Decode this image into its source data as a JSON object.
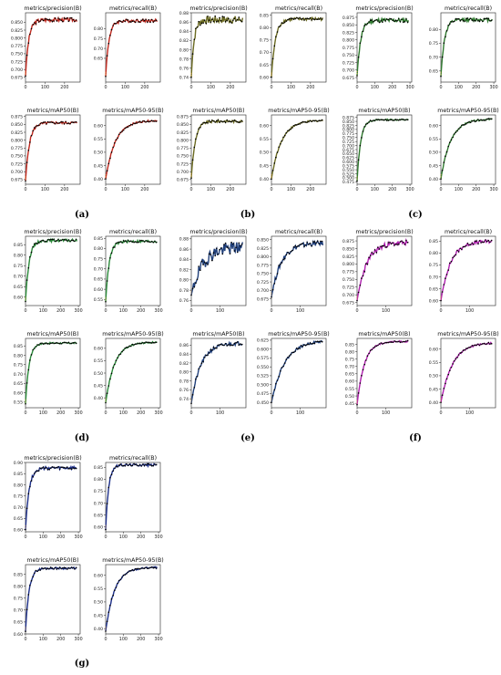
{
  "series_colors": {
    "a": "#c0281e",
    "b": "#6b6b22",
    "c": "#2f7a2f",
    "d": "#2a8a3a",
    "e": "#1f3f7a",
    "f": "#b020b0",
    "g": "#1c2f8a"
  },
  "line_color": "#f2a0a0",
  "marker_color": "#000000",
  "chart_data": [
    {
      "type": "line",
      "panel": "a",
      "panel_label": "(a)",
      "title": "metrics/precision(B)",
      "xlim": [
        0,
        280
      ],
      "ylim": [
        0.66,
        0.88
      ],
      "yticks": [
        "0.675",
        "0.700",
        "0.725",
        "0.750",
        "0.775",
        "0.800",
        "0.825",
        "0.850"
      ],
      "xticks": [
        "0",
        "100",
        "200"
      ],
      "start": 0.68,
      "final": 0.858,
      "rate": 0.06,
      "noise": 0.006
    },
    {
      "type": "line",
      "panel": "a",
      "title": "metrics/recall(B)",
      "xlim": [
        0,
        280
      ],
      "ylim": [
        0.53,
        0.88
      ],
      "yticks": [
        "0.65",
        "0.70",
        "0.75",
        "0.80"
      ],
      "xticks": [
        "0",
        "100",
        "200"
      ],
      "start": 0.56,
      "final": 0.84,
      "rate": 0.06,
      "noise": 0.008
    },
    {
      "type": "line",
      "panel": "a",
      "title": "metrics/mAP50(B)",
      "xlim": [
        0,
        280
      ],
      "ylim": [
        0.66,
        0.88
      ],
      "yticks": [
        "0.675",
        "0.700",
        "0.725",
        "0.750",
        "0.775",
        "0.800",
        "0.825",
        "0.850",
        "0.875"
      ],
      "xticks": [
        "0",
        "100",
        "200"
      ],
      "start": 0.67,
      "final": 0.855,
      "rate": 0.05,
      "noise": 0.004
    },
    {
      "type": "line",
      "panel": "a",
      "title": "metrics/mAP50-95(B)",
      "xlim": [
        0,
        280
      ],
      "ylim": [
        0.38,
        0.64
      ],
      "yticks": [
        "0.40",
        "0.45",
        "0.50",
        "0.55",
        "0.60"
      ],
      "xticks": [
        "0",
        "100",
        "200"
      ],
      "start": 0.4,
      "final": 0.62,
      "rate": 0.02,
      "noise": 0.003
    },
    {
      "type": "line",
      "panel": "b",
      "panel_label": "(b)",
      "title": "metrics/precision(B)",
      "xlim": [
        0,
        280
      ],
      "ylim": [
        0.73,
        0.88
      ],
      "yticks": [
        "0.74",
        "0.76",
        "0.78",
        "0.80",
        "0.82",
        "0.84",
        "0.86",
        "0.88"
      ],
      "xticks": [
        "0",
        "100",
        "200"
      ],
      "start": 0.74,
      "final": 0.865,
      "rate": 0.07,
      "noise": 0.008
    },
    {
      "type": "line",
      "panel": "b",
      "title": "metrics/recall(B)",
      "xlim": [
        0,
        280
      ],
      "ylim": [
        0.58,
        0.86
      ],
      "yticks": [
        "0.60",
        "0.65",
        "0.70",
        "0.75",
        "0.80",
        "0.85"
      ],
      "xticks": [
        "0",
        "100",
        "200"
      ],
      "start": 0.6,
      "final": 0.835,
      "rate": 0.05,
      "noise": 0.006
    },
    {
      "type": "line",
      "panel": "b",
      "title": "metrics/mAP50(B)",
      "xlim": [
        0,
        280
      ],
      "ylim": [
        0.66,
        0.88
      ],
      "yticks": [
        "0.675",
        "0.700",
        "0.725",
        "0.750",
        "0.775",
        "0.800",
        "0.825",
        "0.850",
        "0.875"
      ],
      "xticks": [
        "0",
        "100",
        "200"
      ],
      "start": 0.68,
      "final": 0.86,
      "rate": 0.05,
      "noise": 0.004
    },
    {
      "type": "line",
      "panel": "b",
      "title": "metrics/mAP50-95(B)",
      "xlim": [
        0,
        280
      ],
      "ylim": [
        0.38,
        0.64
      ],
      "yticks": [
        "0.40",
        "0.45",
        "0.50",
        "0.55",
        "0.60"
      ],
      "xticks": [
        "0",
        "100",
        "200"
      ],
      "start": 0.4,
      "final": 0.62,
      "rate": 0.02,
      "noise": 0.003
    },
    {
      "type": "line",
      "panel": "c",
      "panel_label": "(c)",
      "title": "metrics/precision(B)",
      "xlim": [
        0,
        310
      ],
      "ylim": [
        0.66,
        0.89
      ],
      "yticks": [
        "0.675",
        "0.700",
        "0.725",
        "0.750",
        "0.775",
        "0.800",
        "0.825",
        "0.850",
        "0.875"
      ],
      "xticks": [
        "0",
        "100",
        "200",
        "300"
      ],
      "start": 0.68,
      "final": 0.865,
      "rate": 0.05,
      "noise": 0.007
    },
    {
      "type": "line",
      "panel": "c",
      "title": "metrics/recall(B)",
      "xlim": [
        0,
        310
      ],
      "ylim": [
        0.61,
        0.86
      ],
      "yticks": [
        "0.65",
        "0.70",
        "0.75",
        "0.80"
      ],
      "xticks": [
        "0",
        "100",
        "200",
        "300"
      ],
      "start": 0.63,
      "final": 0.835,
      "rate": 0.05,
      "noise": 0.006
    },
    {
      "type": "line",
      "panel": "c",
      "title": "metrics/mAP50(B)",
      "xlim": [
        0,
        310
      ],
      "ylim": [
        0.46,
        0.89
      ],
      "yticks": [
        "0.475",
        "0.500",
        "0.525",
        "0.550",
        "0.575",
        "0.600",
        "0.625",
        "0.650",
        "0.675",
        "0.700",
        "0.725",
        "0.750",
        "0.775",
        "0.800",
        "0.825",
        "0.850",
        "0.875"
      ],
      "xticks": [
        "0",
        "100",
        "200",
        "300"
      ],
      "start": 0.48,
      "final": 0.86,
      "rate": 0.05,
      "noise": 0.004
    },
    {
      "type": "line",
      "panel": "c",
      "title": "metrics/mAP50-95(B)",
      "xlim": [
        0,
        310
      ],
      "ylim": [
        0.38,
        0.64
      ],
      "yticks": [
        "0.40",
        "0.45",
        "0.50",
        "0.55",
        "0.60"
      ],
      "xticks": [
        "0",
        "100",
        "200",
        "300"
      ],
      "start": 0.4,
      "final": 0.625,
      "rate": 0.018,
      "noise": 0.003
    },
    {
      "type": "line",
      "panel": "d",
      "panel_label": "(d)",
      "title": "metrics/precision(B)",
      "xlim": [
        0,
        310
      ],
      "ylim": [
        0.56,
        0.89
      ],
      "yticks": [
        "0.60",
        "0.65",
        "0.70",
        "0.75",
        "0.80",
        "0.85"
      ],
      "xticks": [
        "0",
        "100",
        "200",
        "300"
      ],
      "start": 0.58,
      "final": 0.87,
      "rate": 0.05,
      "noise": 0.006
    },
    {
      "type": "line",
      "panel": "d",
      "title": "metrics/recall(B)",
      "xlim": [
        0,
        310
      ],
      "ylim": [
        0.52,
        0.86
      ],
      "yticks": [
        "0.55",
        "0.60",
        "0.65",
        "0.70",
        "0.75",
        "0.80",
        "0.85"
      ],
      "xticks": [
        "0",
        "100",
        "200",
        "300"
      ],
      "start": 0.54,
      "final": 0.835,
      "rate": 0.05,
      "noise": 0.006
    },
    {
      "type": "line",
      "panel": "d",
      "title": "metrics/mAP50(B)",
      "xlim": [
        0,
        310
      ],
      "ylim": [
        0.52,
        0.89
      ],
      "yticks": [
        "0.55",
        "0.60",
        "0.65",
        "0.70",
        "0.75",
        "0.80",
        "0.85"
      ],
      "xticks": [
        "0",
        "100",
        "200",
        "300"
      ],
      "start": 0.54,
      "final": 0.865,
      "rate": 0.05,
      "noise": 0.004
    },
    {
      "type": "line",
      "panel": "d",
      "title": "metrics/mAP50-95(B)",
      "xlim": [
        0,
        310
      ],
      "ylim": [
        0.36,
        0.64
      ],
      "yticks": [
        "0.40",
        "0.45",
        "0.50",
        "0.55",
        "0.60"
      ],
      "xticks": [
        "0",
        "100",
        "200",
        "300"
      ],
      "start": 0.38,
      "final": 0.625,
      "rate": 0.02,
      "noise": 0.003
    },
    {
      "type": "line",
      "panel": "e",
      "panel_label": "(e)",
      "title": "metrics/precision(B)",
      "xlim": [
        0,
        190
      ],
      "ylim": [
        0.75,
        0.885
      ],
      "yticks": [
        "0.76",
        "0.78",
        "0.80",
        "0.82",
        "0.84",
        "0.86",
        "0.88"
      ],
      "xticks": [
        "0",
        "100"
      ],
      "start": 0.77,
      "final": 0.865,
      "rate": 0.025,
      "noise": 0.012
    },
    {
      "type": "line",
      "panel": "e",
      "title": "metrics/recall(B)",
      "xlim": [
        0,
        190
      ],
      "ylim": [
        0.655,
        0.86
      ],
      "yticks": [
        "0.675",
        "0.700",
        "0.725",
        "0.750",
        "0.775",
        "0.800",
        "0.825",
        "0.850"
      ],
      "xticks": [
        "0",
        "100"
      ],
      "start": 0.68,
      "final": 0.84,
      "rate": 0.03,
      "noise": 0.007
    },
    {
      "type": "line",
      "panel": "e",
      "title": "metrics/mAP50(B)",
      "xlim": [
        0,
        190
      ],
      "ylim": [
        0.72,
        0.875
      ],
      "yticks": [
        "0.74",
        "0.76",
        "0.78",
        "0.80",
        "0.82",
        "0.84",
        "0.86"
      ],
      "xticks": [
        "0",
        "100"
      ],
      "start": 0.73,
      "final": 0.865,
      "rate": 0.03,
      "noise": 0.004
    },
    {
      "type": "line",
      "panel": "e",
      "title": "metrics/mAP50-95(B)",
      "xlim": [
        0,
        190
      ],
      "ylim": [
        0.435,
        0.63
      ],
      "yticks": [
        "0.450",
        "0.475",
        "0.500",
        "0.525",
        "0.550",
        "0.575",
        "0.600",
        "0.625"
      ],
      "xticks": [
        "0",
        "100"
      ],
      "start": 0.45,
      "final": 0.625,
      "rate": 0.022,
      "noise": 0.003
    },
    {
      "type": "line",
      "panel": "f",
      "panel_label": "(f)",
      "title": "metrics/precision(B)",
      "xlim": [
        0,
        190
      ],
      "ylim": [
        0.665,
        0.89
      ],
      "yticks": [
        "0.675",
        "0.700",
        "0.725",
        "0.750",
        "0.775",
        "0.800",
        "0.825",
        "0.850",
        "0.875"
      ],
      "xticks": [
        "0",
        "100"
      ],
      "start": 0.68,
      "final": 0.87,
      "rate": 0.03,
      "noise": 0.008
    },
    {
      "type": "line",
      "panel": "f",
      "title": "metrics/recall(B)",
      "xlim": [
        0,
        190
      ],
      "ylim": [
        0.58,
        0.87
      ],
      "yticks": [
        "0.60",
        "0.65",
        "0.70",
        "0.75",
        "0.80",
        "0.85"
      ],
      "xticks": [
        "0",
        "100"
      ],
      "start": 0.6,
      "final": 0.85,
      "rate": 0.03,
      "noise": 0.007
    },
    {
      "type": "line",
      "panel": "f",
      "title": "metrics/mAP50(B)",
      "xlim": [
        0,
        190
      ],
      "ylim": [
        0.42,
        0.89
      ],
      "yticks": [
        "0.45",
        "0.50",
        "0.55",
        "0.60",
        "0.65",
        "0.70",
        "0.75",
        "0.80",
        "0.85"
      ],
      "xticks": [
        "0",
        "100"
      ],
      "start": 0.44,
      "final": 0.87,
      "rate": 0.04,
      "noise": 0.005
    },
    {
      "type": "line",
      "panel": "f",
      "title": "metrics/mAP50-95(B)",
      "xlim": [
        0,
        190
      ],
      "ylim": [
        0.38,
        0.64
      ],
      "yticks": [
        "0.40",
        "0.45",
        "0.50",
        "0.55",
        "0.60"
      ],
      "xticks": [
        "0",
        "100"
      ],
      "start": 0.4,
      "final": 0.625,
      "rate": 0.025,
      "noise": 0.003
    },
    {
      "type": "line",
      "panel": "g",
      "panel_label": "(g)",
      "title": "metrics/precision(B)",
      "xlim": [
        0,
        310
      ],
      "ylim": [
        0.59,
        0.9
      ],
      "yticks": [
        "0.60",
        "0.65",
        "0.70",
        "0.75",
        "0.80",
        "0.85",
        "0.90"
      ],
      "xticks": [
        "0",
        "100",
        "200",
        "300"
      ],
      "start": 0.6,
      "final": 0.875,
      "rate": 0.05,
      "noise": 0.007
    },
    {
      "type": "line",
      "panel": "g",
      "title": "metrics/recall(B)",
      "xlim": [
        0,
        310
      ],
      "ylim": [
        0.58,
        0.87
      ],
      "yticks": [
        "0.60",
        "0.65",
        "0.70",
        "0.75",
        "0.80",
        "0.85"
      ],
      "xticks": [
        "0",
        "100",
        "200",
        "300"
      ],
      "start": 0.59,
      "final": 0.86,
      "rate": 0.06,
      "noise": 0.005
    },
    {
      "type": "line",
      "panel": "g",
      "title": "metrics/mAP50(B)",
      "xlim": [
        0,
        310
      ],
      "ylim": [
        0.6,
        0.89
      ],
      "yticks": [
        "0.60",
        "0.65",
        "0.70",
        "0.75",
        "0.80",
        "0.85"
      ],
      "xticks": [
        "0",
        "100",
        "200",
        "300"
      ],
      "start": 0.61,
      "final": 0.875,
      "rate": 0.05,
      "noise": 0.004
    },
    {
      "type": "line",
      "panel": "g",
      "title": "metrics/mAP50-95(B)",
      "xlim": [
        0,
        310
      ],
      "ylim": [
        0.38,
        0.64
      ],
      "yticks": [
        "0.40",
        "0.45",
        "0.50",
        "0.55",
        "0.60"
      ],
      "xticks": [
        "0",
        "100",
        "200",
        "300"
      ],
      "start": 0.39,
      "final": 0.63,
      "rate": 0.02,
      "noise": 0.003
    }
  ]
}
